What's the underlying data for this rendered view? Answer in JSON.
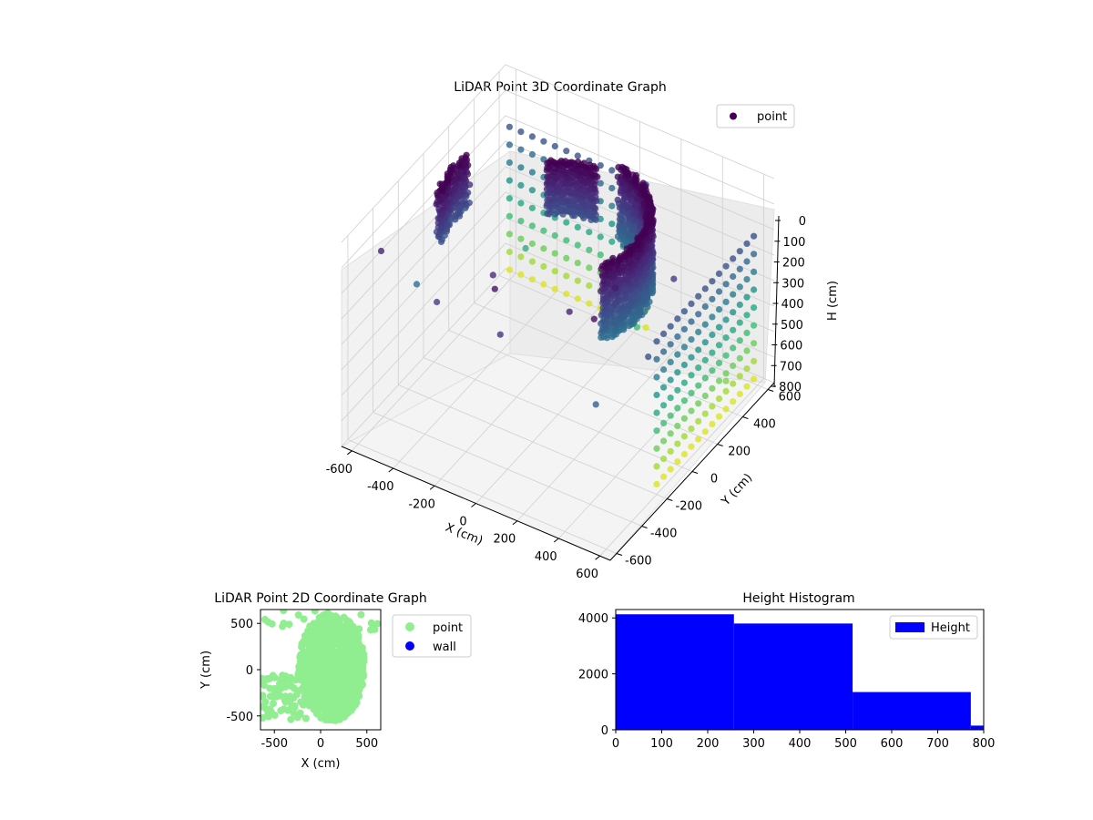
{
  "chart_data": [
    {
      "type": "scatter",
      "projection": "3d",
      "title": "LiDAR Point 3D Coordinate Graph",
      "xlabel": "X (cm)",
      "ylabel": "Y (cm)",
      "zlabel": "H (cm)",
      "xlim": [
        -650,
        650
      ],
      "ylim": [
        -650,
        650
      ],
      "zlim": [
        0,
        800
      ],
      "z_inverted": true,
      "xticks": [
        -600,
        -400,
        -200,
        0,
        200,
        400,
        600
      ],
      "yticks": [
        -600,
        -400,
        -200,
        0,
        200,
        400,
        600
      ],
      "zticks": [
        0,
        100,
        200,
        300,
        400,
        500,
        600,
        700,
        800
      ],
      "grid": true,
      "legend": {
        "position": "top-right",
        "entries": [
          {
            "label": "point",
            "color": "#440154"
          }
        ]
      },
      "colormap": "viridis",
      "color_by": "height",
      "structures": [
        {
          "shape": "arc",
          "radius": 380,
          "start_deg": -30,
          "end_deg": 80,
          "h_min": 0,
          "h_max": 300
        },
        {
          "shape": "arc",
          "radius": 300,
          "start_deg": 90,
          "end_deg": 130,
          "h_min": 0,
          "h_max": 200
        },
        {
          "shape": "arc",
          "radius": 500,
          "start_deg": 170,
          "end_deg": 200,
          "h_min": 0,
          "h_max": 200
        },
        {
          "shape": "wall-x",
          "y": 600,
          "x_min": -600,
          "x_max": 100,
          "h_min": 200,
          "h_max": 800
        },
        {
          "shape": "wall-y",
          "x": 600,
          "y_min": -200,
          "y_max": 600,
          "h_min": 200,
          "h_max": 800
        }
      ],
      "scatter": [
        {
          "x": -250,
          "y": -550,
          "h": 150
        },
        {
          "x": 100,
          "y": -620,
          "h": 120
        },
        {
          "x": 550,
          "y": -600,
          "h": 250
        },
        {
          "x": 620,
          "y": -300,
          "h": 200
        },
        {
          "x": 500,
          "y": 100,
          "h": 150
        },
        {
          "x": -500,
          "y": -300,
          "h": 300
        },
        {
          "x": -600,
          "y": 200,
          "h": 250
        },
        {
          "x": 300,
          "y": -400,
          "h": 80
        },
        {
          "x": -100,
          "y": -350,
          "h": 100
        },
        {
          "x": 400,
          "y": -200,
          "h": 60
        },
        {
          "x": -400,
          "y": 400,
          "h": 500
        },
        {
          "x": 200,
          "y": 300,
          "h": 550
        },
        {
          "x": 600,
          "y": 350,
          "h": 650
        },
        {
          "x": -550,
          "y": -500,
          "h": 80
        },
        {
          "x": 450,
          "y": -450,
          "h": 30
        },
        {
          "x": 0,
          "y": -500,
          "h": 40
        }
      ]
    },
    {
      "type": "scatter",
      "title": "LiDAR Point 2D Coordinate Graph",
      "xlabel": "X (cm)",
      "ylabel": "Y (cm)",
      "xlim": [
        -650,
        650
      ],
      "ylim": [
        -650,
        650
      ],
      "xticks": [
        -500,
        0,
        500
      ],
      "yticks": [
        -500,
        0,
        500
      ],
      "legend": {
        "position": "outside-right",
        "entries": [
          {
            "label": "point",
            "color": "#90ee90"
          },
          {
            "label": "wall",
            "color": "#0000ff"
          }
        ]
      },
      "series": [
        {
          "name": "point",
          "color": "#90ee90"
        },
        {
          "name": "wall",
          "color": "#0000ff"
        }
      ]
    },
    {
      "type": "bar",
      "subtype": "histogram",
      "title": "Height Histogram",
      "xlim": [
        0,
        800
      ],
      "ylim": [
        0,
        4300
      ],
      "xticks": [
        0,
        100,
        200,
        300,
        400,
        500,
        600,
        700,
        800
      ],
      "yticks": [
        0,
        2000,
        4000
      ],
      "legend": {
        "position": "top-right",
        "entries": [
          {
            "label": "Height",
            "color": "#0000ff"
          }
        ]
      },
      "color": "#0000ff",
      "bins": [
        {
          "start": 0,
          "end": 257,
          "count": 4130
        },
        {
          "start": 257,
          "end": 515,
          "count": 3800
        },
        {
          "start": 515,
          "end": 772,
          "count": 1350
        },
        {
          "start": 772,
          "end": 800,
          "count": 150
        }
      ]
    }
  ]
}
